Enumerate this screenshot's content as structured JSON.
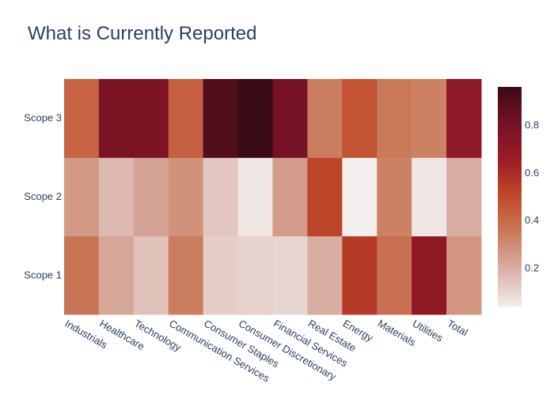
{
  "chart_data": {
    "type": "heatmap",
    "title": "What is Currently Reported",
    "x": [
      "Industrials",
      "Healthcare",
      "Technology",
      "Communication Services",
      "Consumer Staples",
      "Consumer Discretionary",
      "Financial Services",
      "Real Estate",
      "Energy",
      "Materials",
      "Utilities",
      "Total"
    ],
    "y": [
      "Scope 1",
      "Scope 2",
      "Scope 3"
    ],
    "z": [
      [
        0.37,
        0.22,
        0.15,
        0.34,
        0.12,
        0.11,
        0.1,
        0.2,
        0.55,
        0.38,
        0.7,
        0.27
      ],
      [
        0.26,
        0.17,
        0.23,
        0.28,
        0.14,
        0.06,
        0.25,
        0.52,
        0.04,
        0.33,
        0.06,
        0.2
      ],
      [
        0.42,
        0.78,
        0.77,
        0.43,
        0.9,
        0.96,
        0.8,
        0.34,
        0.47,
        0.35,
        0.33,
        0.71
      ]
    ],
    "colorbar": {
      "ticks": [
        0.2,
        0.4,
        0.6,
        0.8
      ],
      "tick_labels": [
        "0.2",
        "0.4",
        "0.6",
        "0.8"
      ],
      "range": [
        0.04,
        0.96
      ]
    },
    "colorscale": [
      "#f2eeed",
      "#d9b0a6",
      "#ca7b5c",
      "#c14a29",
      "#9d1c26",
      "#731225",
      "#3a0a14"
    ]
  }
}
